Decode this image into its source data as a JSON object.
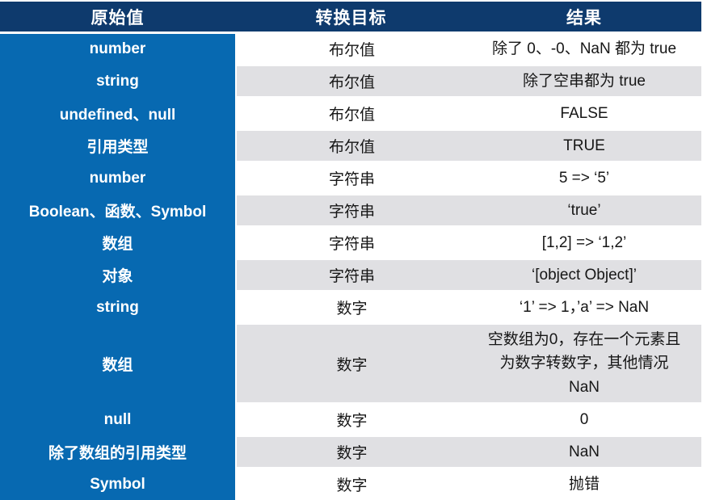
{
  "chart_data": {
    "type": "table",
    "columns": [
      "原始值",
      "转换目标",
      "结果"
    ],
    "rows": [
      [
        "number",
        "布尔值",
        "除了 0、-0、NaN 都为 true"
      ],
      [
        "string",
        "布尔值",
        "除了空串都为 true"
      ],
      [
        "undefined、null",
        "布尔值",
        "FALSE"
      ],
      [
        "引用类型",
        "布尔值",
        "TRUE"
      ],
      [
        "number",
        "字符串",
        "5 => ‘5’"
      ],
      [
        "Boolean、函数、Symbol",
        "字符串",
        "‘true’"
      ],
      [
        "数组",
        "字符串",
        "[1,2] => ‘1,2’"
      ],
      [
        "对象",
        "字符串",
        "‘[object Object]’"
      ],
      [
        "string",
        "数字",
        "‘1’ => 1，’a’ => NaN"
      ],
      [
        "数组",
        "数字",
        "空数组为0，存在一个元素且\n为数字转数字，其他情况\nNaN"
      ],
      [
        "null",
        "数字",
        "0"
      ],
      [
        "除了数组的引用类型",
        "数字",
        "NaN"
      ],
      [
        "Symbol",
        "数字",
        "抛错"
      ]
    ],
    "layout": {
      "legend": "none",
      "grid": "off",
      "stripe_pattern": "alternating white/gray body rows, solid blue first column"
    },
    "colors": {
      "header_bg": "#0e3a6d",
      "header_text": "#ffffff",
      "first_col_bg": "#0769b1",
      "first_col_text": "#ffffff",
      "stripe_gray": "#e0e0e3",
      "row_white": "#ffffff",
      "body_text": "#161616"
    }
  }
}
